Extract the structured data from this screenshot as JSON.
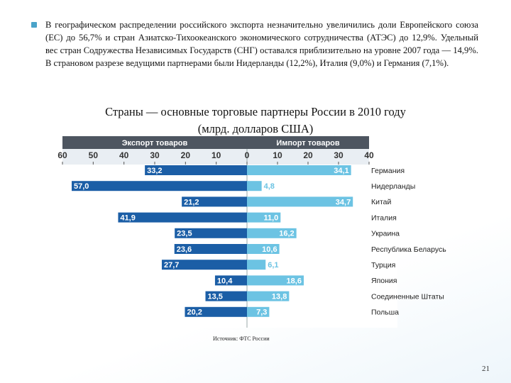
{
  "slide": {
    "paragraph": "В географическом распределении российского экспорта незначительно увеличились доли Европейского союза (ЕС) до 56,7% и стран Азиатско-Тихоокеанского экономического сотрудничества (АТЭС) до 12,9%. Удельный вес стран Содружества Независимых Государств (СНГ) оставался приблизительно на уровне 2007 года — 14,9%. В страновом разрезе ведущими партнерами были Нидерланды (12,2%), Италия (9,0%) и Германия (7,1%).",
    "source": "Источник: ФТС России",
    "page_number": "21"
  },
  "chart_data": {
    "type": "butterfly",
    "title": "Страны — основные торговые партнеры России в 2010 году",
    "subtitle": "(млрд. долларов США)",
    "categories": [
      "Германия",
      "Нидерланды",
      "Китай",
      "Италия",
      "Украина",
      "Республика Беларусь",
      "Турция",
      "Япония",
      "Соединенные Штаты",
      "Польша"
    ],
    "series": [
      {
        "name": "Экспорт товаров",
        "color": "#1b5ea6",
        "side": "left",
        "values": [
          33.2,
          57.0,
          21.2,
          41.9,
          23.5,
          23.6,
          27.7,
          10.4,
          13.5,
          20.2
        ],
        "value_labels": [
          "33,2",
          "57,0",
          "21,2",
          "41,9",
          "23,5",
          "23,6",
          "27,7",
          "10,4",
          "13,5",
          "20,2"
        ],
        "xlim": [
          0,
          60
        ],
        "xticks": [
          60,
          50,
          40,
          30,
          20,
          10
        ]
      },
      {
        "name": "Импорт товаров",
        "color": "#6cc3e3",
        "side": "right",
        "values": [
          34.1,
          4.8,
          34.7,
          11.0,
          16.2,
          10.6,
          6.1,
          18.6,
          13.8,
          7.3
        ],
        "value_labels": [
          "34,1",
          "4,8",
          "34,7",
          "11,0",
          "16,2",
          "10,6",
          "6,1",
          "18,6",
          "13,8",
          "7,3"
        ],
        "xlim": [
          0,
          40
        ],
        "xticks": [
          0,
          10,
          20,
          30,
          40
        ]
      }
    ]
  }
}
